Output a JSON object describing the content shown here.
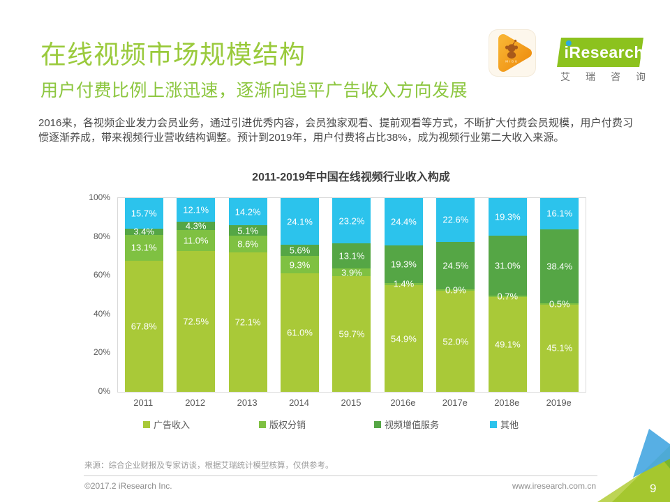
{
  "header": {
    "title": "在线视频市场规模结构",
    "subtitle": "用户付费比例上涨迅速，逐渐向追平广告收入方向发展"
  },
  "logos": {
    "migu_label": "MIGU",
    "iresearch_name": "iResearch",
    "iresearch_cn": "艾瑞咨询"
  },
  "intro": "2016来，各视频企业发力会员业务，通过引进优秀内容，会员独家观看、提前观看等方式，不断扩大付费会员规模，用户付费习惯逐渐养成，带来视频行业营收结构调整。预计到2019年，用户付费将占比38%，成为视频行业第二大收入来源。",
  "chart_data": {
    "type": "bar",
    "stacked": true,
    "title": "2011-2019年中国在线视频行业收入构成",
    "categories": [
      "2011",
      "2012",
      "2013",
      "2014",
      "2015",
      "2016e",
      "2017e",
      "2018e",
      "2019e"
    ],
    "series": [
      {
        "name": "广告收入",
        "color": "#a9c938",
        "values": [
          67.8,
          72.5,
          72.1,
          61.0,
          59.7,
          54.9,
          52.0,
          49.1,
          45.1
        ]
      },
      {
        "name": "版权分销",
        "color": "#7fc142",
        "values": [
          13.1,
          11.0,
          8.6,
          9.3,
          3.9,
          1.4,
          0.9,
          0.7,
          0.5
        ]
      },
      {
        "name": "视频增值服务",
        "color": "#55a645",
        "values": [
          3.4,
          4.3,
          5.1,
          5.6,
          13.1,
          19.3,
          24.5,
          31.0,
          38.4
        ]
      },
      {
        "name": "其他",
        "color": "#2cc3ec",
        "values": [
          15.7,
          12.1,
          14.2,
          24.1,
          23.2,
          24.4,
          22.6,
          19.3,
          16.1
        ]
      }
    ],
    "y_ticks": [
      "0%",
      "20%",
      "40%",
      "60%",
      "80%",
      "100%"
    ],
    "ylim": [
      0,
      100
    ],
    "value_suffix": "%",
    "grid": false,
    "legend_position": "bottom"
  },
  "footer": {
    "source": "来源：综合企业财报及专家访谈，根据艾瑞统计模型核算，仅供参考。",
    "copyright": "©2017.2 iResearch Inc.",
    "website": "www.iresearch.com.cn",
    "page_number": "9"
  },
  "colors": {
    "brand_green": "#8cc63f",
    "bar_ad": "#a9c938",
    "bar_copyright": "#7fc142",
    "bar_value_added": "#55a645",
    "bar_other": "#2cc3ec",
    "corner_blue": "#4aa9e2"
  }
}
